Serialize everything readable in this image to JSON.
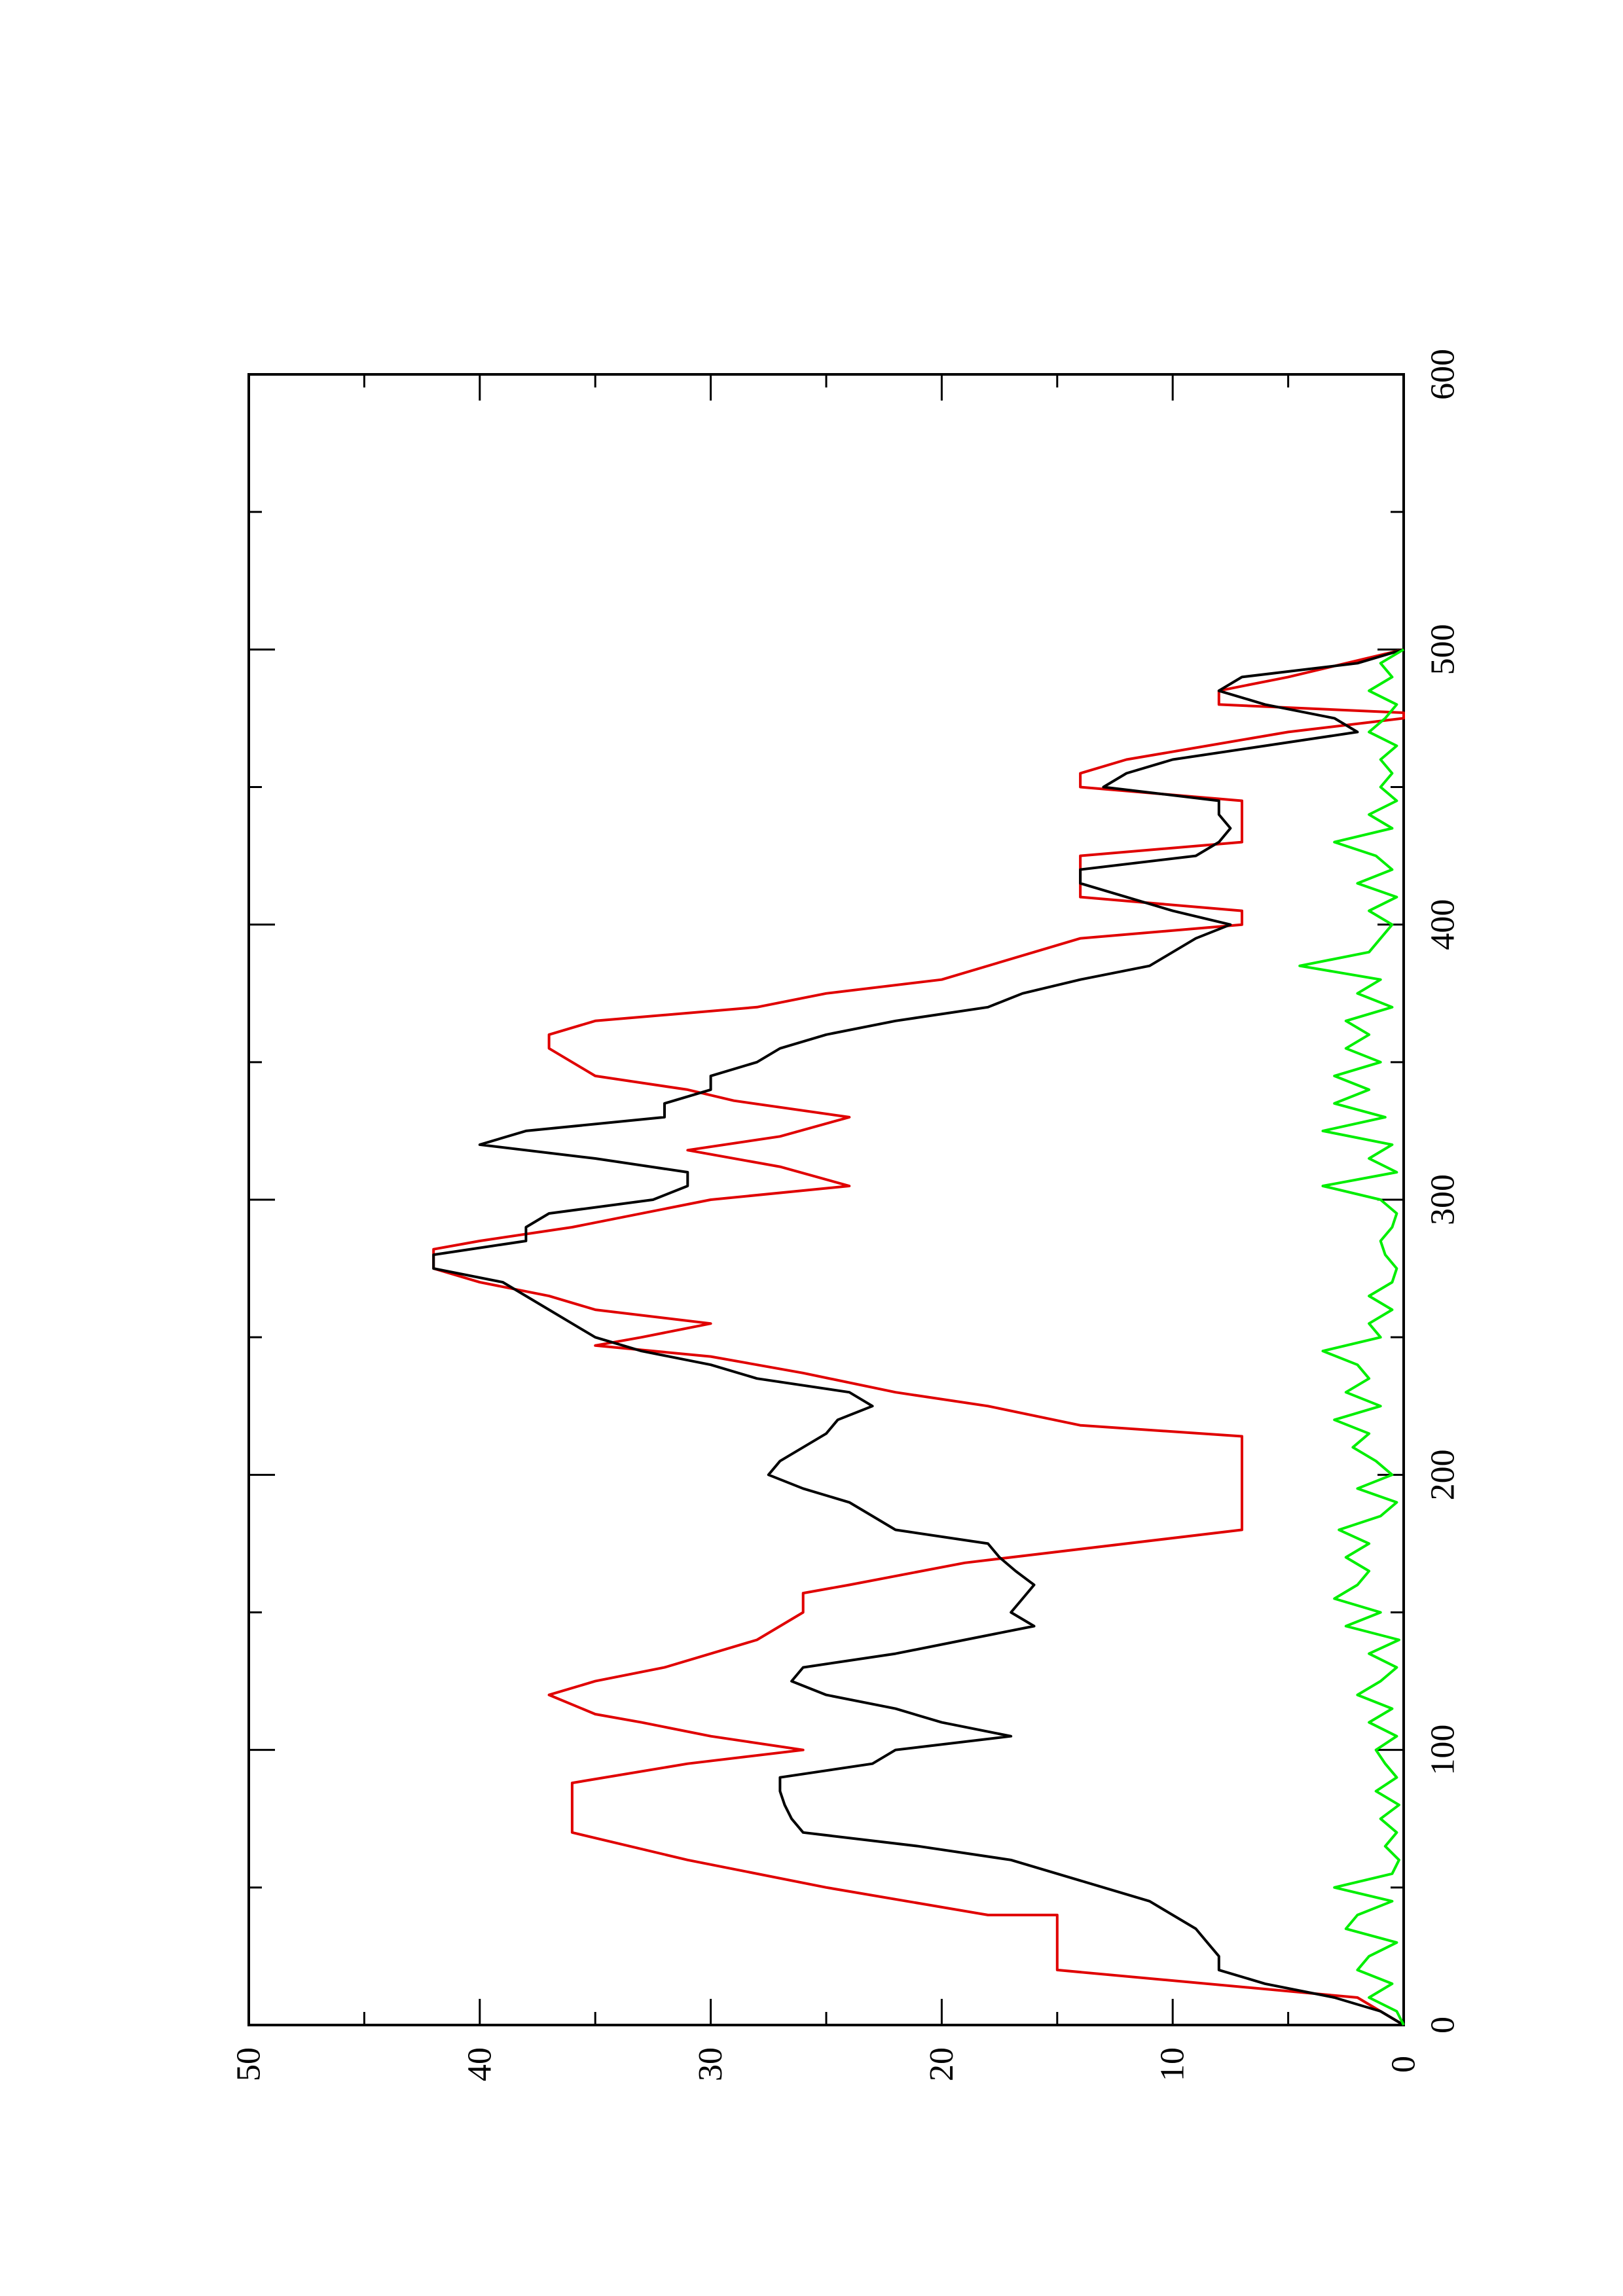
{
  "chart_data": {
    "type": "line",
    "orientation": "rotated-90-counterclockwise",
    "title": "",
    "xlabel": "",
    "ylabel": "",
    "xlim": [
      0,
      600
    ],
    "ylim": [
      0,
      50
    ],
    "x_ticks": [
      0,
      100,
      200,
      300,
      400,
      500,
      600
    ],
    "y_ticks": [
      0,
      10,
      20,
      30,
      40,
      50
    ],
    "x_tick_labels": [
      "0",
      "100",
      "200",
      "300",
      "400",
      "500",
      "600"
    ],
    "y_tick_labels": [
      "0",
      "10",
      "20",
      "30",
      "40",
      "50"
    ],
    "grid": false,
    "legend": "none",
    "series": [
      {
        "color": "#e00000",
        "shape": "step",
        "points": [
          [
            0,
            0
          ],
          [
            10,
            2
          ],
          [
            20,
            15
          ],
          [
            40,
            15
          ],
          [
            40,
            18
          ],
          [
            50,
            25
          ],
          [
            60,
            31
          ],
          [
            70,
            36
          ],
          [
            88,
            36
          ],
          [
            95,
            31
          ],
          [
            100,
            26
          ],
          [
            105,
            30
          ],
          [
            110,
            33
          ],
          [
            113,
            35
          ],
          [
            120,
            37
          ],
          [
            125,
            35
          ],
          [
            130,
            32
          ],
          [
            140,
            28
          ],
          [
            150,
            26
          ],
          [
            157,
            26
          ],
          [
            160,
            24
          ],
          [
            168,
            19
          ],
          [
            172,
            15
          ],
          [
            180,
            7
          ],
          [
            214,
            7
          ],
          [
            218,
            14
          ],
          [
            225,
            18
          ],
          [
            230,
            22
          ],
          [
            237,
            26
          ],
          [
            243,
            30
          ],
          [
            247,
            35
          ],
          [
            250,
            33
          ],
          [
            255,
            30
          ],
          [
            260,
            35
          ],
          [
            265,
            37
          ],
          [
            270,
            40
          ],
          [
            275,
            42
          ],
          [
            282,
            42
          ],
          [
            285,
            40
          ],
          [
            290,
            36
          ],
          [
            300,
            30
          ],
          [
            305,
            24
          ],
          [
            312,
            27
          ],
          [
            318,
            31
          ],
          [
            323,
            27
          ],
          [
            330,
            24
          ],
          [
            336,
            29
          ],
          [
            340,
            31
          ],
          [
            345,
            35
          ],
          [
            355,
            37
          ],
          [
            360,
            37
          ],
          [
            365,
            35
          ],
          [
            370,
            28
          ],
          [
            375,
            25
          ],
          [
            380,
            20
          ],
          [
            390,
            16
          ],
          [
            395,
            14
          ],
          [
            400,
            7
          ],
          [
            405,
            7
          ],
          [
            410,
            14
          ],
          [
            425,
            14
          ],
          [
            430,
            7
          ],
          [
            445,
            7
          ],
          [
            450,
            14
          ],
          [
            455,
            14
          ],
          [
            460,
            12
          ],
          [
            470,
            5
          ],
          [
            475,
            0
          ],
          [
            477,
            0
          ],
          [
            480,
            8
          ],
          [
            485,
            8
          ],
          [
            490,
            5
          ],
          [
            500,
            0
          ]
        ]
      },
      {
        "color": "#000000",
        "shape": "line",
        "points": [
          [
            0,
            0
          ],
          [
            5,
            1
          ],
          [
            10,
            3
          ],
          [
            15,
            6
          ],
          [
            20,
            8
          ],
          [
            25,
            8
          ],
          [
            30,
            8.5
          ],
          [
            35,
            9
          ],
          [
            40,
            10
          ],
          [
            45,
            11
          ],
          [
            50,
            13
          ],
          [
            55,
            15
          ],
          [
            60,
            17
          ],
          [
            65,
            21
          ],
          [
            70,
            26
          ],
          [
            75,
            26.5
          ],
          [
            80,
            26.8
          ],
          [
            85,
            27
          ],
          [
            90,
            27
          ],
          [
            95,
            23
          ],
          [
            100,
            22
          ],
          [
            105,
            17
          ],
          [
            110,
            20
          ],
          [
            115,
            22
          ],
          [
            120,
            25
          ],
          [
            125,
            26.5
          ],
          [
            130,
            26
          ],
          [
            135,
            22
          ],
          [
            140,
            19
          ],
          [
            145,
            16
          ],
          [
            150,
            17
          ],
          [
            155,
            16.5
          ],
          [
            160,
            16
          ],
          [
            165,
            16.8
          ],
          [
            170,
            17.5
          ],
          [
            175,
            18
          ],
          [
            180,
            22
          ],
          [
            185,
            23
          ],
          [
            190,
            24
          ],
          [
            195,
            26
          ],
          [
            200,
            27.5
          ],
          [
            205,
            27
          ],
          [
            210,
            26
          ],
          [
            215,
            25
          ],
          [
            220,
            24.5
          ],
          [
            225,
            23
          ],
          [
            230,
            24
          ],
          [
            235,
            28
          ],
          [
            240,
            30
          ],
          [
            245,
            33
          ],
          [
            250,
            35
          ],
          [
            255,
            36
          ],
          [
            260,
            37
          ],
          [
            265,
            38
          ],
          [
            270,
            39
          ],
          [
            275,
            42
          ],
          [
            280,
            42
          ],
          [
            285,
            38
          ],
          [
            290,
            38
          ],
          [
            295,
            37
          ],
          [
            300,
            32.5
          ],
          [
            305,
            31
          ],
          [
            310,
            31
          ],
          [
            315,
            35
          ],
          [
            320,
            40
          ],
          [
            325,
            38
          ],
          [
            330,
            32
          ],
          [
            335,
            32
          ],
          [
            340,
            30
          ],
          [
            345,
            30
          ],
          [
            350,
            28
          ],
          [
            355,
            27
          ],
          [
            360,
            25
          ],
          [
            365,
            22
          ],
          [
            370,
            18
          ],
          [
            375,
            16.5
          ],
          [
            380,
            14
          ],
          [
            385,
            11
          ],
          [
            390,
            10
          ],
          [
            395,
            9
          ],
          [
            400,
            7.5
          ],
          [
            405,
            10
          ],
          [
            410,
            12
          ],
          [
            415,
            14
          ],
          [
            420,
            14
          ],
          [
            425,
            9
          ],
          [
            430,
            8
          ],
          [
            435,
            7.5
          ],
          [
            440,
            8
          ],
          [
            445,
            8
          ],
          [
            450,
            13
          ],
          [
            455,
            12
          ],
          [
            460,
            10
          ],
          [
            465,
            6
          ],
          [
            470,
            2
          ],
          [
            475,
            3
          ],
          [
            480,
            6
          ],
          [
            485,
            8
          ],
          [
            490,
            7
          ],
          [
            495,
            2
          ],
          [
            500,
            0
          ]
        ]
      },
      {
        "color": "#00ee00",
        "shape": "line",
        "points": [
          [
            0,
            0
          ],
          [
            5,
            0.3
          ],
          [
            10,
            1.5
          ],
          [
            15,
            0.5
          ],
          [
            20,
            2
          ],
          [
            25,
            1.5
          ],
          [
            30,
            0.3
          ],
          [
            35,
            2.5
          ],
          [
            40,
            2
          ],
          [
            45,
            0.5
          ],
          [
            50,
            3
          ],
          [
            55,
            0.5
          ],
          [
            60,
            0.2
          ],
          [
            65,
            0.8
          ],
          [
            70,
            0.3
          ],
          [
            75,
            1
          ],
          [
            80,
            0.2
          ],
          [
            85,
            1.2
          ],
          [
            90,
            0.3
          ],
          [
            95,
            0.8
          ],
          [
            100,
            1.2
          ],
          [
            105,
            0.3
          ],
          [
            110,
            1.5
          ],
          [
            115,
            0.5
          ],
          [
            120,
            2
          ],
          [
            125,
            1
          ],
          [
            130,
            0.3
          ],
          [
            135,
            1.5
          ],
          [
            140,
            0.2
          ],
          [
            145,
            2.5
          ],
          [
            150,
            1
          ],
          [
            155,
            3
          ],
          [
            160,
            2
          ],
          [
            165,
            1.5
          ],
          [
            170,
            2.5
          ],
          [
            175,
            1.5
          ],
          [
            180,
            2.8
          ],
          [
            185,
            1
          ],
          [
            190,
            0.3
          ],
          [
            195,
            2
          ],
          [
            200,
            0.5
          ],
          [
            205,
            1.2
          ],
          [
            210,
            2.2
          ],
          [
            215,
            1.5
          ],
          [
            220,
            3
          ],
          [
            225,
            1
          ],
          [
            230,
            2.5
          ],
          [
            235,
            1.5
          ],
          [
            240,
            2
          ],
          [
            245,
            3.5
          ],
          [
            250,
            1
          ],
          [
            255,
            1.5
          ],
          [
            260,
            0.5
          ],
          [
            265,
            1.5
          ],
          [
            270,
            0.5
          ],
          [
            275,
            0.3
          ],
          [
            280,
            0.8
          ],
          [
            285,
            1
          ],
          [
            290,
            0.5
          ],
          [
            295,
            0.3
          ],
          [
            300,
            1
          ],
          [
            305,
            3.5
          ],
          [
            310,
            0.3
          ],
          [
            315,
            1.5
          ],
          [
            320,
            0.5
          ],
          [
            325,
            3.5
          ],
          [
            330,
            0.8
          ],
          [
            335,
            3
          ],
          [
            340,
            1.5
          ],
          [
            345,
            3
          ],
          [
            350,
            1
          ],
          [
            355,
            2.5
          ],
          [
            360,
            1.5
          ],
          [
            365,
            2.5
          ],
          [
            370,
            0.5
          ],
          [
            375,
            2
          ],
          [
            380,
            1
          ],
          [
            385,
            4.5
          ],
          [
            390,
            1.5
          ],
          [
            395,
            1
          ],
          [
            400,
            0.5
          ],
          [
            405,
            1.5
          ],
          [
            410,
            0.3
          ],
          [
            415,
            2
          ],
          [
            420,
            0.5
          ],
          [
            425,
            1.2
          ],
          [
            430,
            3
          ],
          [
            435,
            0.5
          ],
          [
            440,
            1.5
          ],
          [
            445,
            0.3
          ],
          [
            450,
            1
          ],
          [
            455,
            0.5
          ],
          [
            460,
            1
          ],
          [
            465,
            0.3
          ],
          [
            470,
            1.5
          ],
          [
            475,
            0.8
          ],
          [
            480,
            0.3
          ],
          [
            485,
            1.5
          ],
          [
            490,
            0.5
          ],
          [
            495,
            1
          ],
          [
            500,
            0
          ]
        ]
      }
    ]
  }
}
